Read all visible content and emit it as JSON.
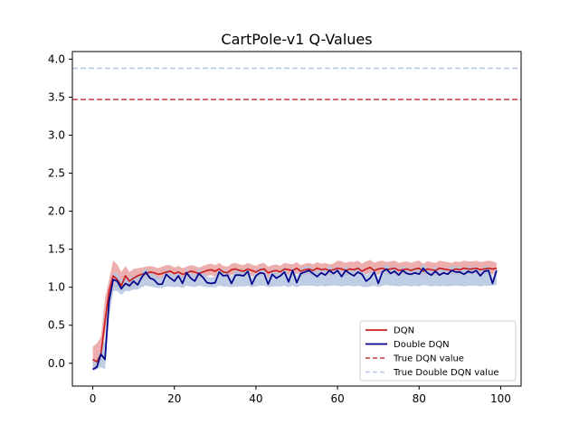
{
  "chart_data": {
    "type": "line",
    "title": "CartPole-v1 Q-Values",
    "xlabel": "",
    "ylabel": "",
    "xlim": [
      -5,
      105
    ],
    "ylim": [
      -0.3,
      4.1
    ],
    "xticks": [
      0,
      20,
      40,
      60,
      80,
      100
    ],
    "yticks": [
      0.0,
      0.5,
      1.0,
      1.5,
      2.0,
      2.5,
      3.0,
      3.5,
      4.0
    ],
    "xtick_labels": [
      "0",
      "20",
      "40",
      "60",
      "80",
      "100"
    ],
    "ytick_labels": [
      "0.0",
      "0.5",
      "1.0",
      "1.5",
      "2.0",
      "2.5",
      "3.0",
      "3.5",
      "4.0"
    ],
    "grid": false,
    "legend": {
      "position": "lower-right",
      "entries": [
        "DQN",
        "Double DQN",
        "True DQN value",
        "True Double DQN value"
      ]
    },
    "series": [
      {
        "name": "DQN",
        "color": "#cc1f1f",
        "band_color": "#eaa0a0",
        "style": "solid",
        "x": [
          0,
          1,
          2,
          3,
          4,
          5,
          6,
          7,
          8,
          9,
          10,
          11,
          12,
          13,
          14,
          15,
          16,
          17,
          18,
          19,
          20,
          21,
          22,
          23,
          24,
          25,
          26,
          27,
          28,
          29,
          30,
          31,
          32,
          33,
          34,
          35,
          36,
          37,
          38,
          39,
          40,
          41,
          42,
          43,
          44,
          45,
          46,
          47,
          48,
          49,
          50,
          51,
          52,
          53,
          54,
          55,
          56,
          57,
          58,
          59,
          60,
          61,
          62,
          63,
          64,
          65,
          66,
          67,
          68,
          69,
          70,
          71,
          72,
          73,
          74,
          75,
          76,
          77,
          78,
          79,
          80,
          81,
          82,
          83,
          84,
          85,
          86,
          87,
          88,
          89,
          90,
          91,
          92,
          93,
          94,
          95,
          96,
          97,
          98,
          99
        ],
        "values": [
          0.05,
          0.02,
          0.12,
          0.55,
          0.95,
          1.15,
          1.1,
          1.02,
          1.15,
          1.08,
          1.12,
          1.15,
          1.17,
          1.18,
          1.2,
          1.19,
          1.17,
          1.18,
          1.2,
          1.21,
          1.18,
          1.2,
          1.17,
          1.19,
          1.21,
          1.2,
          1.18,
          1.2,
          1.22,
          1.23,
          1.21,
          1.24,
          1.2,
          1.19,
          1.23,
          1.24,
          1.22,
          1.21,
          1.24,
          1.22,
          1.2,
          1.23,
          1.24,
          1.19,
          1.21,
          1.22,
          1.2,
          1.24,
          1.23,
          1.22,
          1.25,
          1.21,
          1.23,
          1.24,
          1.22,
          1.25,
          1.23,
          1.24,
          1.22,
          1.23,
          1.25,
          1.24,
          1.22,
          1.24,
          1.23,
          1.25,
          1.21,
          1.24,
          1.26,
          1.22,
          1.24,
          1.25,
          1.23,
          1.24,
          1.25,
          1.22,
          1.23,
          1.24,
          1.22,
          1.24,
          1.25,
          1.21,
          1.24,
          1.23,
          1.22,
          1.25,
          1.24,
          1.23,
          1.22,
          1.24,
          1.23,
          1.25,
          1.24,
          1.24,
          1.25,
          1.23,
          1.24,
          1.25,
          1.24,
          1.25
        ],
        "lower": [
          -0.05,
          -0.08,
          0.0,
          0.4,
          0.75,
          1.0,
          1.0,
          0.95,
          1.02,
          0.98,
          1.0,
          1.05,
          1.1,
          1.12,
          1.13,
          1.12,
          1.1,
          1.12,
          1.14,
          1.14,
          1.11,
          1.13,
          1.1,
          1.12,
          1.14,
          1.13,
          1.11,
          1.13,
          1.15,
          1.16,
          1.14,
          1.17,
          1.13,
          1.12,
          1.16,
          1.17,
          1.15,
          1.14,
          1.17,
          1.15,
          1.13,
          1.16,
          1.17,
          1.12,
          1.14,
          1.15,
          1.13,
          1.17,
          1.16,
          1.15,
          1.18,
          1.14,
          1.16,
          1.17,
          1.15,
          1.18,
          1.16,
          1.17,
          1.15,
          1.16,
          1.18,
          1.17,
          1.15,
          1.17,
          1.16,
          1.18,
          1.14,
          1.17,
          1.19,
          1.15,
          1.17,
          1.18,
          1.16,
          1.17,
          1.18,
          1.15,
          1.16,
          1.17,
          1.15,
          1.17,
          1.18,
          1.14,
          1.17,
          1.16,
          1.15,
          1.18,
          1.17,
          1.16,
          1.15,
          1.17,
          1.16,
          1.18,
          1.17,
          1.17,
          1.18,
          1.16,
          1.17,
          1.18,
          1.17,
          1.18
        ],
        "upper": [
          0.22,
          0.26,
          0.35,
          0.85,
          1.1,
          1.35,
          1.3,
          1.2,
          1.28,
          1.2,
          1.24,
          1.25,
          1.26,
          1.27,
          1.28,
          1.27,
          1.25,
          1.27,
          1.29,
          1.29,
          1.26,
          1.28,
          1.25,
          1.27,
          1.29,
          1.28,
          1.26,
          1.28,
          1.3,
          1.31,
          1.29,
          1.32,
          1.28,
          1.27,
          1.31,
          1.32,
          1.3,
          1.29,
          1.32,
          1.3,
          1.28,
          1.31,
          1.32,
          1.27,
          1.29,
          1.3,
          1.28,
          1.32,
          1.31,
          1.3,
          1.33,
          1.29,
          1.31,
          1.32,
          1.3,
          1.33,
          1.31,
          1.32,
          1.3,
          1.31,
          1.35,
          1.34,
          1.32,
          1.34,
          1.33,
          1.35,
          1.31,
          1.34,
          1.36,
          1.32,
          1.34,
          1.35,
          1.33,
          1.34,
          1.35,
          1.32,
          1.33,
          1.34,
          1.32,
          1.34,
          1.35,
          1.31,
          1.34,
          1.33,
          1.32,
          1.35,
          1.34,
          1.33,
          1.32,
          1.34,
          1.33,
          1.35,
          1.34,
          1.34,
          1.35,
          1.33,
          1.34,
          1.35,
          1.34,
          1.32
        ]
      },
      {
        "name": "Double DQN",
        "color": "#00008b",
        "band_color": "#b4c6df",
        "style": "solid",
        "x": [
          0,
          1,
          2,
          3,
          4,
          5,
          6,
          7,
          8,
          9,
          10,
          11,
          12,
          13,
          14,
          15,
          16,
          17,
          18,
          19,
          20,
          21,
          22,
          23,
          24,
          25,
          26,
          27,
          28,
          29,
          30,
          31,
          32,
          33,
          34,
          35,
          36,
          37,
          38,
          39,
          40,
          41,
          42,
          43,
          44,
          45,
          46,
          47,
          48,
          49,
          50,
          51,
          52,
          53,
          54,
          55,
          56,
          57,
          58,
          59,
          60,
          61,
          62,
          63,
          64,
          65,
          66,
          67,
          68,
          69,
          70,
          71,
          72,
          73,
          74,
          75,
          76,
          77,
          78,
          79,
          80,
          81,
          82,
          83,
          84,
          85,
          86,
          87,
          88,
          89,
          90,
          91,
          92,
          93,
          94,
          95,
          96,
          97,
          98,
          99
        ],
        "values": [
          -0.08,
          -0.05,
          0.12,
          0.05,
          0.82,
          1.1,
          1.08,
          0.98,
          1.05,
          1.02,
          1.08,
          1.03,
          1.13,
          1.2,
          1.12,
          1.1,
          1.04,
          1.04,
          1.17,
          1.12,
          1.08,
          1.15,
          1.05,
          1.19,
          1.12,
          1.08,
          1.18,
          1.13,
          1.06,
          1.05,
          1.06,
          1.2,
          1.15,
          1.16,
          1.05,
          1.16,
          1.16,
          1.15,
          1.21,
          1.04,
          1.15,
          1.19,
          1.18,
          1.04,
          1.17,
          1.12,
          1.15,
          1.2,
          1.07,
          1.22,
          1.06,
          1.18,
          1.2,
          1.22,
          1.18,
          1.14,
          1.19,
          1.16,
          1.22,
          1.18,
          1.22,
          1.14,
          1.22,
          1.18,
          1.15,
          1.2,
          1.17,
          1.08,
          1.12,
          1.2,
          1.05,
          1.2,
          1.24,
          1.18,
          1.21,
          1.16,
          1.22,
          1.18,
          1.17,
          1.19,
          1.17,
          1.25,
          1.19,
          1.16,
          1.21,
          1.16,
          1.19,
          1.17,
          1.22,
          1.2,
          1.2,
          1.17,
          1.21,
          1.19,
          1.22,
          1.15,
          1.21,
          1.22,
          1.05,
          1.22
        ],
        "lower": [
          -0.1,
          -0.08,
          -0.05,
          -0.08,
          0.6,
          0.95,
          0.95,
          0.9,
          0.95,
          0.95,
          0.97,
          0.97,
          1.0,
          1.02,
          1.01,
          1.0,
          0.99,
          0.99,
          1.01,
          1.01,
          1.0,
          1.01,
          0.99,
          1.02,
          1.01,
          1.0,
          1.02,
          1.01,
          1.0,
          1.0,
          1.0,
          1.02,
          1.01,
          1.01,
          1.0,
          1.01,
          1.01,
          1.01,
          1.02,
          1.0,
          1.01,
          1.02,
          1.02,
          1.0,
          1.01,
          1.01,
          1.01,
          1.02,
          1.0,
          1.02,
          1.0,
          1.02,
          1.02,
          1.02,
          1.02,
          1.01,
          1.02,
          1.01,
          1.02,
          1.02,
          1.02,
          1.01,
          1.02,
          1.02,
          1.01,
          1.02,
          1.01,
          1.0,
          1.01,
          1.02,
          1.0,
          1.02,
          1.03,
          1.02,
          1.02,
          1.01,
          1.02,
          1.02,
          1.01,
          1.02,
          1.01,
          1.03,
          1.02,
          1.01,
          1.02,
          1.01,
          1.02,
          1.01,
          1.02,
          1.02,
          1.02,
          1.01,
          1.02,
          1.02,
          1.02,
          1.01,
          1.02,
          1.02,
          1.02,
          1.03
        ],
        "upper": [
          0.05,
          0.05,
          0.2,
          0.3,
          1.0,
          1.2,
          1.18,
          1.1,
          1.14,
          1.12,
          1.15,
          1.13,
          1.2,
          1.25,
          1.2,
          1.18,
          1.13,
          1.13,
          1.24,
          1.2,
          1.16,
          1.22,
          1.13,
          1.25,
          1.2,
          1.16,
          1.25,
          1.2,
          1.14,
          1.13,
          1.14,
          1.26,
          1.22,
          1.23,
          1.13,
          1.23,
          1.23,
          1.22,
          1.27,
          1.12,
          1.22,
          1.26,
          1.25,
          1.12,
          1.24,
          1.19,
          1.22,
          1.27,
          1.15,
          1.28,
          1.14,
          1.25,
          1.27,
          1.28,
          1.25,
          1.21,
          1.26,
          1.23,
          1.28,
          1.25,
          1.28,
          1.21,
          1.28,
          1.25,
          1.22,
          1.27,
          1.24,
          1.16,
          1.19,
          1.27,
          1.13,
          1.27,
          1.3,
          1.25,
          1.28,
          1.23,
          1.28,
          1.25,
          1.24,
          1.26,
          1.24,
          1.31,
          1.26,
          1.23,
          1.28,
          1.23,
          1.26,
          1.24,
          1.28,
          1.27,
          1.27,
          1.24,
          1.28,
          1.26,
          1.28,
          1.22,
          1.28,
          1.28,
          1.13,
          1.28
        ]
      },
      {
        "name": "True DQN value",
        "color": "#c0393e",
        "style": "dashed",
        "value": 3.47
      },
      {
        "name": "True Double DQN value",
        "color": "#b4c6df",
        "style": "dashed",
        "value": 3.88
      }
    ]
  }
}
